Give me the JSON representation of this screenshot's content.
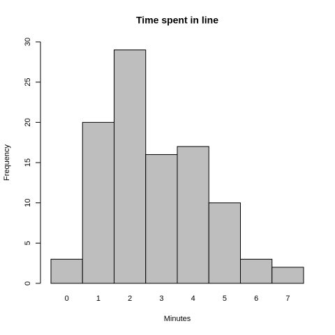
{
  "chart_data": {
    "type": "bar",
    "title": "Time spent in line",
    "x_label": "Minutes",
    "y_label": "Frequency",
    "categories": [
      "0",
      "1",
      "2",
      "3",
      "4",
      "5",
      "6",
      "7"
    ],
    "values": [
      3,
      20,
      29,
      16,
      17,
      10,
      3,
      2
    ],
    "color": "#bebebe",
    "ylim": [
      0,
      30
    ],
    "yticks": [
      0,
      5,
      10,
      15,
      20,
      25,
      30
    ],
    "grid": false
  }
}
